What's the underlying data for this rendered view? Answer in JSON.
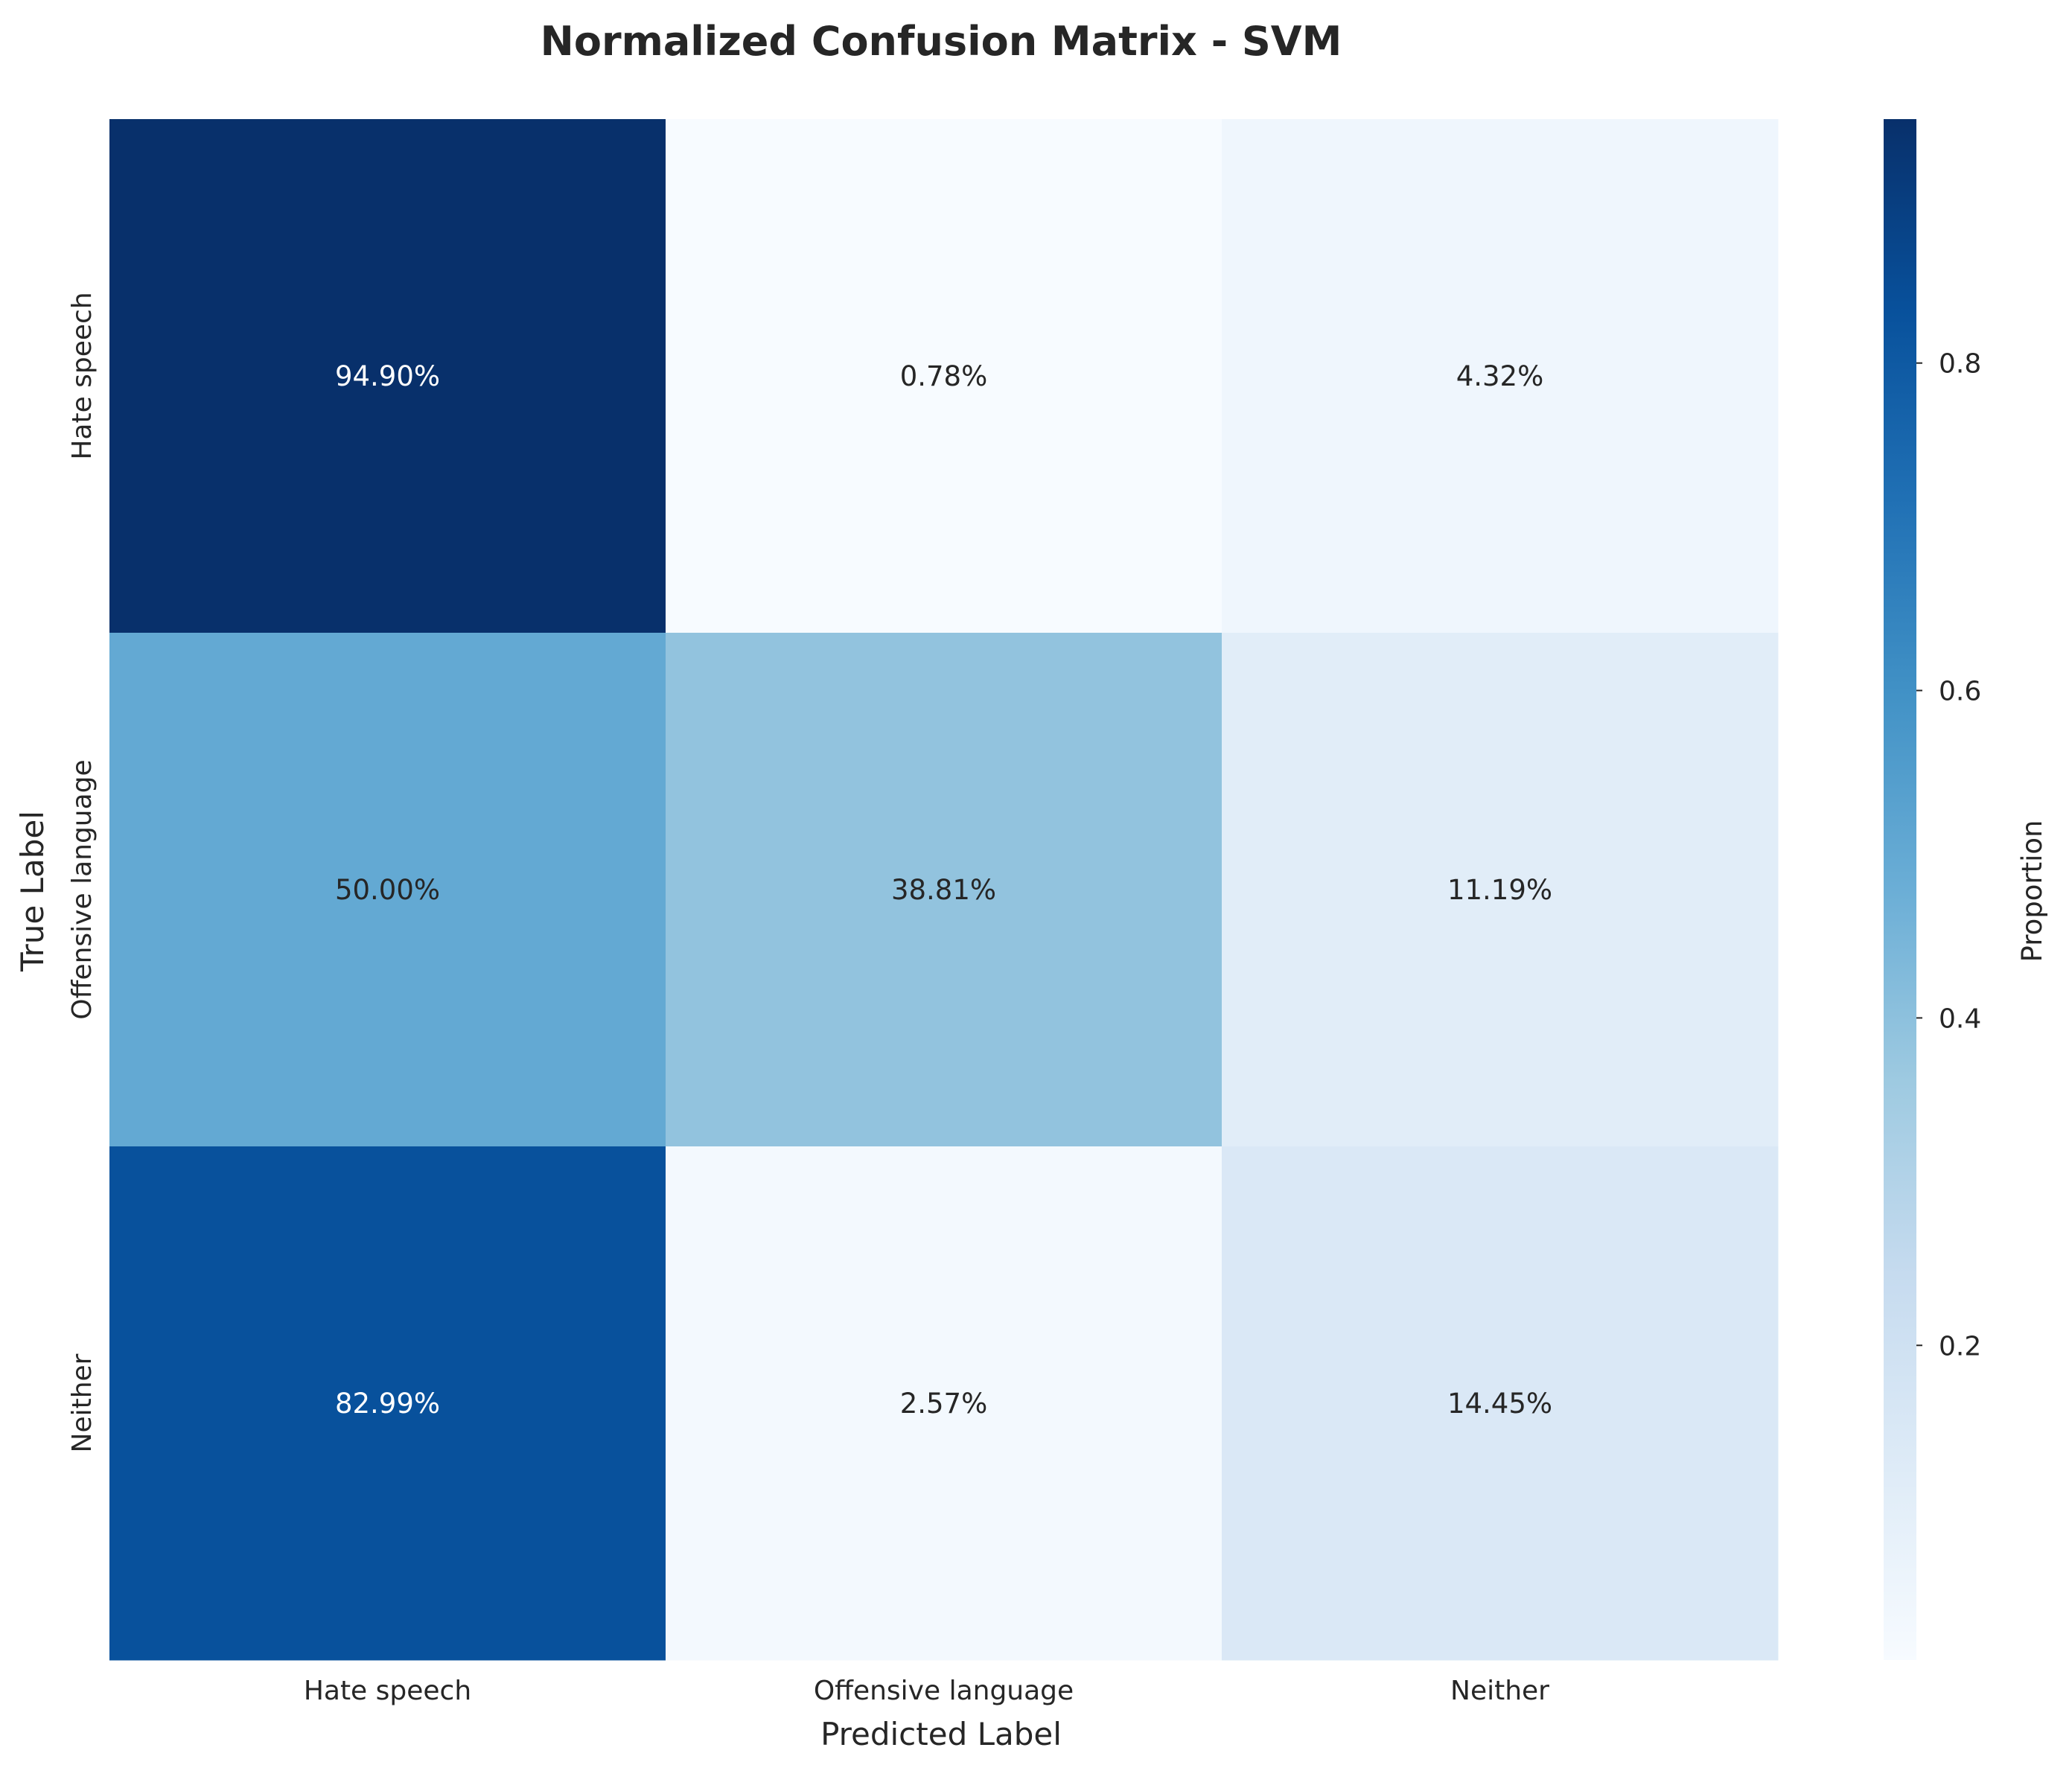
{
  "chart_data": {
    "type": "heatmap",
    "title": "Normalized Confusion Matrix - SVM",
    "xlabel": "Predicted Label",
    "ylabel": "True Label",
    "x_categories": [
      "Hate speech",
      "Offensive language",
      "Neither"
    ],
    "y_categories": [
      "Hate speech",
      "Offensive language",
      "Neither"
    ],
    "values": [
      [
        0.949,
        0.0078,
        0.0432
      ],
      [
        0.5,
        0.3881,
        0.1119
      ],
      [
        0.8299,
        0.0257,
        0.1445
      ]
    ],
    "cell_labels": [
      [
        "94.90%",
        "0.78%",
        "4.32%"
      ],
      [
        "50.00%",
        "38.81%",
        "11.19%"
      ],
      [
        "82.99%",
        "2.57%",
        "14.45%"
      ]
    ],
    "colormap": "Blues",
    "colorbar": {
      "label": "Proportion",
      "range": [
        0.0078,
        0.949
      ],
      "ticks": [
        0.2,
        0.4,
        0.6,
        0.8
      ],
      "tick_labels": [
        "0.2",
        "0.4",
        "0.6",
        "0.8"
      ]
    },
    "grid": false
  }
}
